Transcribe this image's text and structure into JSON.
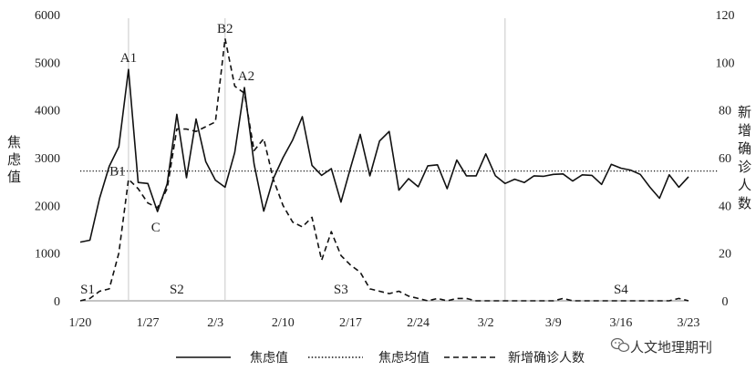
{
  "chart_data": {
    "type": "line",
    "x_tick_labels": [
      "1/20",
      "1/27",
      "2/3",
      "2/10",
      "2/17",
      "2/24",
      "3/2",
      "3/9",
      "3/16",
      "3/23"
    ],
    "y_left_label": "焦虑值",
    "y_right_label": "新增确诊人数",
    "y_left_ticks": [
      "0",
      "1000",
      "2000",
      "3000",
      "4000",
      "5000",
      "6000"
    ],
    "y_right_ticks": [
      "0",
      "20",
      "40",
      "60",
      "80",
      "100",
      "120"
    ],
    "ylim_left": [
      0,
      6000
    ],
    "ylim_right": [
      0,
      120
    ],
    "x_day_range": [
      0,
      63
    ],
    "grid": false,
    "legend_position": "bottom",
    "series": [
      {
        "name": "焦虑值",
        "axis": "left",
        "style": "solid",
        "x": [
          0,
          1,
          2,
          3,
          4,
          5,
          6,
          7,
          8,
          9,
          10,
          11,
          12,
          13,
          14,
          15,
          16,
          17,
          18,
          19,
          20,
          21,
          22,
          23,
          24,
          25,
          26,
          27,
          28,
          29,
          30,
          31,
          32,
          33,
          34,
          35,
          36,
          37,
          38,
          39,
          40,
          41,
          42,
          43,
          44,
          45,
          46,
          47,
          48,
          49,
          50,
          51,
          52,
          53,
          54,
          55,
          56,
          57,
          58,
          59,
          60,
          61,
          62,
          63
        ],
        "values": [
          1230,
          1270,
          2150,
          2820,
          3230,
          4850,
          2480,
          2460,
          1870,
          2450,
          3910,
          2580,
          3810,
          2920,
          2530,
          2380,
          3110,
          4470,
          2870,
          1880,
          2560,
          3000,
          3370,
          3860,
          2840,
          2630,
          2770,
          2070,
          2790,
          3490,
          2620,
          3350,
          3550,
          2320,
          2560,
          2390,
          2830,
          2850,
          2350,
          2950,
          2620,
          2620,
          3080,
          2620,
          2460,
          2550,
          2480,
          2620,
          2610,
          2650,
          2660,
          2510,
          2640,
          2630,
          2440,
          2860,
          2780,
          2740,
          2650,
          2380,
          2150,
          2640,
          2380,
          2600
        ]
      },
      {
        "name": "焦虑均值",
        "axis": "left",
        "style": "dotted",
        "value": 2720
      },
      {
        "name": "新增确诊人数",
        "axis": "right",
        "style": "dashed",
        "x": [
          0,
          1,
          2,
          3,
          4,
          5,
          6,
          7,
          8,
          9,
          10,
          11,
          12,
          13,
          14,
          15,
          16,
          17,
          18,
          19,
          20,
          21,
          22,
          23,
          24,
          25,
          26,
          27,
          28,
          29,
          30,
          31,
          32,
          33,
          34,
          35,
          36,
          37,
          38,
          39,
          40,
          41,
          42,
          43,
          44,
          45,
          46,
          47,
          48,
          49,
          50,
          51,
          52,
          53,
          54,
          55,
          56,
          57,
          58,
          59,
          60,
          61,
          62,
          63
        ],
        "values": [
          0,
          1,
          4,
          5,
          20,
          51,
          47,
          41,
          39,
          47,
          72,
          72,
          71,
          73,
          75,
          110,
          90,
          87,
          63,
          68,
          51,
          40,
          33,
          31,
          35,
          17,
          29,
          19,
          15,
          12,
          5,
          4,
          3,
          4,
          2,
          1,
          0,
          1,
          0,
          1,
          1,
          0,
          0,
          0,
          0,
          0,
          0,
          0,
          0,
          0,
          1,
          0,
          0,
          0,
          0,
          0,
          0,
          0,
          0,
          0,
          0,
          0,
          1,
          0
        ]
      }
    ],
    "vertical_markers": [
      5,
      15,
      44
    ],
    "annotations": [
      {
        "text": "A1",
        "x": 5,
        "y": 4850
      },
      {
        "text": "A2",
        "x": 17,
        "y": 4470
      },
      {
        "text": "B1",
        "x": 5,
        "y": 51
      },
      {
        "text": "B2",
        "x": 15,
        "y": 110
      },
      {
        "text": "C",
        "x": 8,
        "y": 1870
      },
      {
        "text": "S1",
        "x": 0
      },
      {
        "text": "S2",
        "x": 10
      },
      {
        "text": "S3",
        "x": 27
      },
      {
        "text": "S4",
        "x": 56
      }
    ]
  },
  "watermark": {
    "text": "人文地理期刊",
    "icon": "wechat-icon"
  }
}
